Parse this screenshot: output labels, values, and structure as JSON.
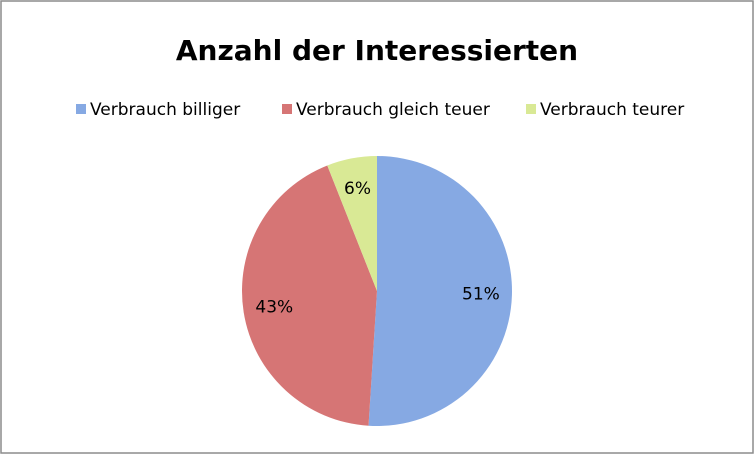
{
  "chart_data": {
    "type": "pie",
    "title": "Anzahl der Interessierten",
    "categories": [
      "Verbrauch billiger",
      "Verbrauch gleich teuer",
      "Verbrauch teurer"
    ],
    "values": [
      51,
      43,
      6
    ],
    "value_labels": [
      "51%",
      "43%",
      "6%"
    ],
    "colors": [
      "#86a9e3",
      "#d67575",
      "#d9e995"
    ],
    "legend": "top"
  }
}
